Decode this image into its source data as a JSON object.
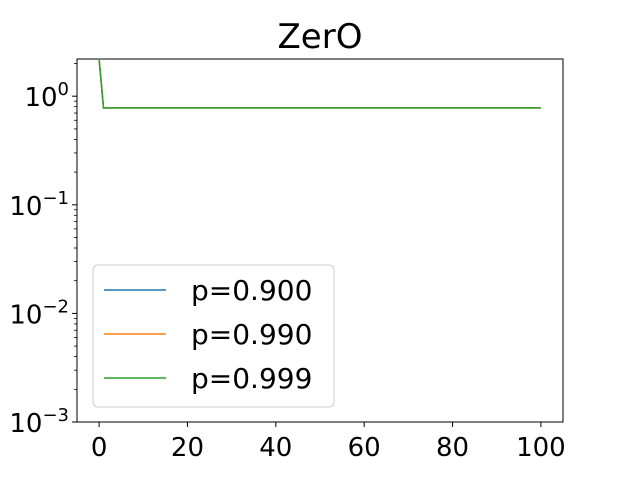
{
  "chart_data": {
    "type": "line",
    "title": "ZerO",
    "xlabel": "",
    "ylabel": "",
    "yscale": "log",
    "xlim": [
      -5,
      105
    ],
    "ylim": [
      0.001,
      2.2
    ],
    "xticks": [
      0,
      20,
      40,
      60,
      80,
      100
    ],
    "yticks": [
      {
        "base": "10",
        "exp": "0",
        "value": 1
      },
      {
        "base": "10",
        "exp": "−1",
        "value": 0.1
      },
      {
        "base": "10",
        "exp": "−2",
        "value": 0.01
      },
      {
        "base": "10",
        "exp": "−3",
        "value": 0.001
      }
    ],
    "grid": false,
    "legend_position": "lower-left",
    "series": [
      {
        "name": "p=0.900",
        "color": "#1f77b4",
        "x": [
          0,
          1,
          100
        ],
        "y": [
          2.2,
          0.78,
          0.78
        ]
      },
      {
        "name": "p=0.990",
        "color": "#ff7f0e",
        "x": [
          0,
          1,
          100
        ],
        "y": [
          2.2,
          0.78,
          0.78
        ]
      },
      {
        "name": "p=0.999",
        "color": "#2ca02c",
        "x": [
          0,
          1,
          100
        ],
        "y": [
          2.2,
          0.78,
          0.78
        ]
      }
    ]
  }
}
